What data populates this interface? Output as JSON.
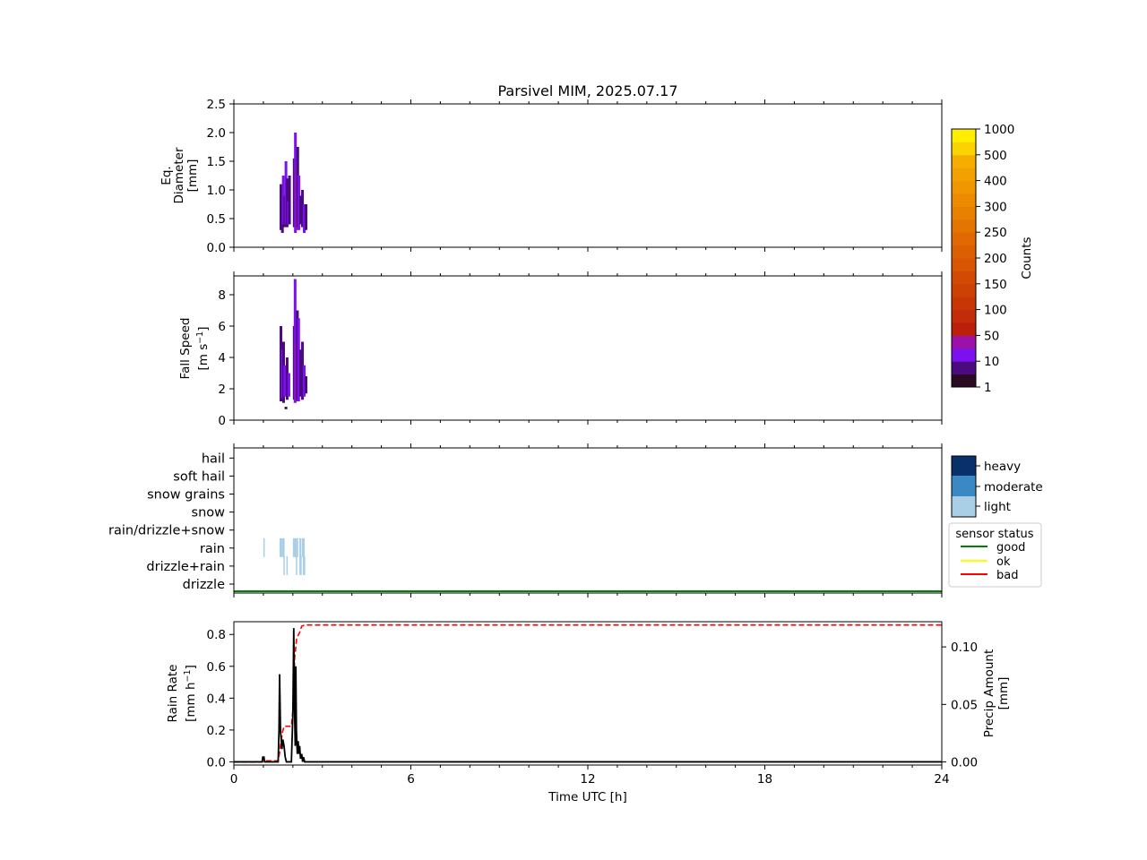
{
  "figure": {
    "title": "Parsivel MIM, 2025.07.17"
  },
  "colors": {
    "counts_scale": [
      "#2b0b23",
      "#4a0b7f",
      "#7b10f0",
      "#9c12a9",
      "#bb1f0a",
      "#c22c08",
      "#c83606",
      "#cd4105",
      "#d24b04",
      "#d75503",
      "#dc6002",
      "#e06a01",
      "#e47500",
      "#e88000",
      "#ec8b00",
      "#f09600",
      "#f3a100",
      "#f6ac00",
      "#fad400",
      "#ffee00"
    ],
    "intensity_light": "#a8cfe6",
    "intensity_moderate": "#3a88c4",
    "intensity_heavy": "#08306b",
    "status_good": "#008000",
    "status_ok": "#ffff00",
    "status_bad": "#ff0000",
    "rain_rate_line": "#000000",
    "precip_amount_line": "#ff0000"
  },
  "chart_data": [
    {
      "type": "heatmap",
      "panel": "diameter",
      "ylabel_line1": "Eq.",
      "ylabel_line2": "Diameter",
      "ylabel_line3": "[mm]",
      "xlim": [
        0,
        24
      ],
      "ylim": [
        0,
        2.5
      ],
      "yticks": [
        "0.0",
        "0.5",
        "1.0",
        "1.5",
        "2.0",
        "2.5"
      ],
      "ytick_values": [
        0,
        0.5,
        1.0,
        1.5,
        2.0,
        2.5
      ],
      "x_major_ticks": [
        0,
        6,
        12,
        18,
        24
      ],
      "cells": [
        {
          "t": 1.55,
          "lo": 0.3,
          "hi": 1.1,
          "c": 1
        },
        {
          "t": 1.6,
          "lo": 0.25,
          "hi": 1.0,
          "c": 1
        },
        {
          "t": 1.63,
          "lo": 0.4,
          "hi": 1.25,
          "c": 2
        },
        {
          "t": 1.68,
          "lo": 0.35,
          "hi": 0.9,
          "c": 1
        },
        {
          "t": 1.72,
          "lo": 0.4,
          "hi": 1.5,
          "c": 2
        },
        {
          "t": 1.76,
          "lo": 0.35,
          "hi": 1.2,
          "c": 1
        },
        {
          "t": 1.8,
          "lo": 0.4,
          "hi": 0.8,
          "c": 2
        },
        {
          "t": 1.84,
          "lo": 0.4,
          "hi": 1.25,
          "c": 1
        },
        {
          "t": 2.0,
          "lo": 0.35,
          "hi": 1.55,
          "c": 1
        },
        {
          "t": 2.04,
          "lo": 0.25,
          "hi": 2.0,
          "c": 2
        },
        {
          "t": 2.08,
          "lo": 0.3,
          "hi": 1.4,
          "c": 3
        },
        {
          "t": 2.12,
          "lo": 0.35,
          "hi": 1.75,
          "c": 1
        },
        {
          "t": 2.16,
          "lo": 0.3,
          "hi": 1.25,
          "c": 2
        },
        {
          "t": 2.22,
          "lo": 0.4,
          "hi": 0.9,
          "c": 1
        },
        {
          "t": 2.28,
          "lo": 0.35,
          "hi": 1.0,
          "c": 1
        },
        {
          "t": 2.34,
          "lo": 0.25,
          "hi": 0.75,
          "c": 2
        },
        {
          "t": 2.4,
          "lo": 0.3,
          "hi": 0.75,
          "c": 1
        }
      ]
    },
    {
      "type": "heatmap",
      "panel": "fall_speed",
      "ylabel_line1": "Fall Speed",
      "ylabel_line2": "[m s",
      "ylabel_sup": "−1",
      "ylabel_end": "]",
      "xlim": [
        0,
        24
      ],
      "ylim": [
        0,
        9.2
      ],
      "yticks": [
        "0",
        "2",
        "4",
        "6",
        "8"
      ],
      "ytick_values": [
        0,
        2,
        4,
        6,
        8
      ],
      "cells": [
        {
          "t": 1.55,
          "lo": 1.2,
          "hi": 6.0,
          "c": 1
        },
        {
          "t": 1.6,
          "lo": 1.4,
          "hi": 4.5,
          "c": 2
        },
        {
          "t": 1.64,
          "lo": 1.1,
          "hi": 5.0,
          "c": 1
        },
        {
          "t": 1.68,
          "lo": 1.5,
          "hi": 3.5,
          "c": 2
        },
        {
          "t": 1.72,
          "lo": 0.7,
          "hi": 0.85,
          "c": 0
        },
        {
          "t": 1.76,
          "lo": 1.3,
          "hi": 4.0,
          "c": 1
        },
        {
          "t": 1.82,
          "lo": 1.5,
          "hi": 3.0,
          "c": 2
        },
        {
          "t": 2.0,
          "lo": 1.3,
          "hi": 6.0,
          "c": 1
        },
        {
          "t": 2.03,
          "lo": 1.1,
          "hi": 9.0,
          "c": 2
        },
        {
          "t": 2.07,
          "lo": 1.2,
          "hi": 5.0,
          "c": 3
        },
        {
          "t": 2.11,
          "lo": 1.3,
          "hi": 7.0,
          "c": 1
        },
        {
          "t": 2.15,
          "lo": 1.2,
          "hi": 6.5,
          "c": 2
        },
        {
          "t": 2.22,
          "lo": 1.5,
          "hi": 4.5,
          "c": 1
        },
        {
          "t": 2.28,
          "lo": 1.3,
          "hi": 5.0,
          "c": 1
        },
        {
          "t": 2.34,
          "lo": 1.5,
          "hi": 3.5,
          "c": 2
        },
        {
          "t": 2.4,
          "lo": 1.7,
          "hi": 2.8,
          "c": 1
        }
      ]
    },
    {
      "type": "heatmap",
      "panel": "weather_type",
      "xlim": [
        0,
        24
      ],
      "categories": [
        "drizzle",
        "drizzle+rain",
        "rain",
        "rain/drizzle+snow",
        "snow",
        "snow grains",
        "soft hail",
        "hail"
      ],
      "events": [
        {
          "t0": 1.0,
          "t1": 1.04,
          "cat": 2,
          "lvl": "light"
        },
        {
          "t0": 1.55,
          "t1": 1.63,
          "cat": 2,
          "lvl": "light"
        },
        {
          "t0": 1.63,
          "t1": 1.72,
          "cat": 2,
          "lvl": "light"
        },
        {
          "t0": 1.68,
          "t1": 1.72,
          "cat": 1,
          "lvl": "light"
        },
        {
          "t0": 1.78,
          "t1": 1.82,
          "cat": 1,
          "lvl": "light"
        },
        {
          "t0": 2.0,
          "t1": 2.1,
          "cat": 2,
          "lvl": "light"
        },
        {
          "t0": 2.1,
          "t1": 2.18,
          "cat": 2,
          "lvl": "light"
        },
        {
          "t0": 2.1,
          "t1": 2.14,
          "cat": 1,
          "lvl": "light"
        },
        {
          "t0": 2.22,
          "t1": 2.28,
          "cat": 2,
          "lvl": "light"
        },
        {
          "t0": 2.22,
          "t1": 2.3,
          "cat": 1,
          "lvl": "light"
        },
        {
          "t0": 2.3,
          "t1": 2.34,
          "cat": 2,
          "lvl": "light"
        },
        {
          "t0": 2.34,
          "t1": 2.4,
          "cat": 2,
          "lvl": "light"
        },
        {
          "t0": 2.34,
          "t1": 2.42,
          "cat": 1,
          "lvl": "light"
        }
      ],
      "status_line": {
        "level": "good",
        "from": 0,
        "to": 24
      }
    },
    {
      "type": "line",
      "panel": "rain_rate",
      "ylabel_line1": "Rain Rate",
      "ylabel_line2": "[mm h",
      "ylabel_sup": "−1",
      "ylabel_end": "]",
      "y2label_line1": "Precip Amount",
      "y2label_line2": "[mm]",
      "xlabel": "Time UTC [h]",
      "xlim": [
        0,
        24
      ],
      "xticks": [
        "0",
        "6",
        "12",
        "18",
        "24"
      ],
      "xtick_values": [
        0,
        6,
        12,
        18,
        24
      ],
      "ylim": [
        -0.02,
        0.88
      ],
      "yticks": [
        "0.0",
        "0.2",
        "0.4",
        "0.6",
        "0.8"
      ],
      "ytick_values": [
        0,
        0.2,
        0.4,
        0.6,
        0.8
      ],
      "y2lim": [
        -0.0027,
        0.1219
      ],
      "y2ticks": [
        "0.00",
        "0.05",
        "0.10"
      ],
      "y2tick_values": [
        0,
        0.05,
        0.1
      ],
      "series": [
        {
          "name": "Rain Rate",
          "axis": "left",
          "x": [
            0,
            0.96,
            0.98,
            1.02,
            1.04,
            1.5,
            1.53,
            1.55,
            1.58,
            1.6,
            1.63,
            1.66,
            1.7,
            1.74,
            1.78,
            1.85,
            1.95,
            2.0,
            2.03,
            2.05,
            2.08,
            2.1,
            2.12,
            2.15,
            2.18,
            2.2,
            2.23,
            2.26,
            2.3,
            2.33,
            2.36,
            2.4,
            2.5,
            24
          ],
          "values": [
            0,
            0,
            0.03,
            0.03,
            0,
            0,
            0.2,
            0.55,
            0.2,
            0.15,
            0.08,
            0.14,
            0.1,
            0.03,
            0,
            0,
            0,
            0.3,
            0.84,
            0.4,
            0.1,
            0.6,
            0.2,
            0.05,
            0.13,
            0.05,
            0.1,
            0.02,
            0.05,
            0,
            0.03,
            0,
            0,
            0
          ]
        },
        {
          "name": "Precip Amount",
          "axis": "right",
          "x": [
            0,
            0.9,
            1.0,
            1.1,
            1.5,
            1.55,
            1.6,
            1.65,
            1.7,
            1.75,
            1.95,
            2.0,
            2.03,
            2.06,
            2.1,
            2.13,
            2.18,
            2.22,
            2.3,
            2.4,
            24
          ],
          "values": [
            0,
            0,
            0.0005,
            0.001,
            0.001,
            0.008,
            0.018,
            0.026,
            0.031,
            0.031,
            0.031,
            0.045,
            0.07,
            0.09,
            0.1,
            0.108,
            0.11,
            0.112,
            0.118,
            0.119,
            0.119
          ]
        }
      ]
    }
  ],
  "colorbar_counts": {
    "label": "Counts",
    "ticks": [
      "1",
      "10",
      "50",
      "100",
      "150",
      "200",
      "250",
      "300",
      "400",
      "500",
      "1000"
    ]
  },
  "colorbar_intensity": {
    "ticks": [
      "light",
      "moderate",
      "heavy"
    ]
  },
  "legend_status": {
    "title": "sensor status",
    "items": [
      "good",
      "ok",
      "bad"
    ]
  }
}
